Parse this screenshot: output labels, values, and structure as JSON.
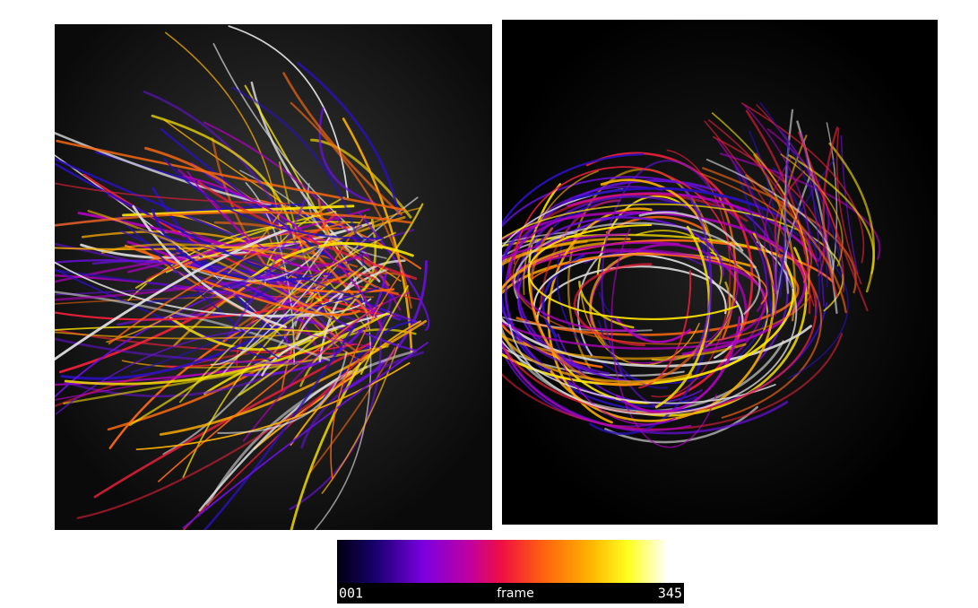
{
  "colorbar": {
    "min_label": "001",
    "label": "frame",
    "max_label": "345"
  }
}
